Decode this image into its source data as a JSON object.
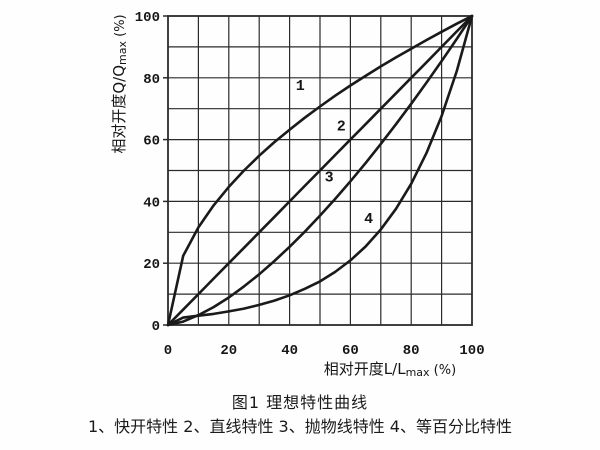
{
  "figure": {
    "caption_line1": "图1  理想特性曲线",
    "caption_line2": "1、快开特性  2、直线特性  3、抛物线特性  4、等百分比特性"
  },
  "chart_data": {
    "type": "line",
    "title": "图1 理想特性曲线",
    "xlabel": "相对开度L/Lmax (%)",
    "ylabel": "相对开度Q/Qmax (%)",
    "xlabel_parts": {
      "base": "相对开度L/L",
      "sub": "max",
      "suffix": " (%)"
    },
    "ylabel_parts": {
      "base": "相对开度Q/Q",
      "sub": "max",
      "suffix": " (%)"
    },
    "xlim": [
      0,
      100
    ],
    "ylim": [
      0,
      100
    ],
    "x_ticks": [
      0,
      20,
      40,
      60,
      80,
      100
    ],
    "y_ticks": [
      0,
      20,
      40,
      60,
      80,
      100
    ],
    "grid_step": 10,
    "grid_on": true,
    "line_color": "#1a1a1a",
    "grid_color": "#2b2b2b",
    "text_color": "#161616",
    "x": [
      0,
      5,
      10,
      15,
      20,
      25,
      30,
      35,
      40,
      45,
      50,
      55,
      60,
      65,
      70,
      75,
      80,
      85,
      90,
      95,
      100
    ],
    "series": [
      {
        "label": "1",
        "name": "快开特性",
        "label_pos": [
          43.5,
          76
        ],
        "y": [
          0,
          22.4,
          31.6,
          38.7,
          44.7,
          50,
          54.8,
          59.2,
          63.2,
          67.1,
          70.7,
          74.2,
          77.5,
          80.6,
          83.7,
          86.6,
          89.4,
          92.2,
          94.9,
          97.5,
          100
        ]
      },
      {
        "label": "2",
        "name": "直线特性",
        "label_pos": [
          57,
          63
        ],
        "y": [
          0,
          5,
          10,
          15,
          20,
          25,
          30,
          35,
          40,
          45,
          50,
          55,
          60,
          65,
          70,
          75,
          80,
          85,
          90,
          95,
          100
        ]
      },
      {
        "label": "3",
        "name": "抛物线特性",
        "label_pos": [
          53,
          46.5
        ],
        "y": [
          0,
          1.1,
          3.2,
          5.8,
          8.9,
          12.5,
          16.4,
          20.7,
          25.3,
          30.2,
          35.4,
          40.8,
          46.5,
          52.4,
          58.6,
          65,
          71.6,
          78.4,
          85.4,
          92.6,
          100
        ]
      },
      {
        "label": "4",
        "name": "等百分比特性",
        "label_pos": [
          66,
          33
        ],
        "y": [
          0,
          2.4,
          3,
          3.6,
          4.4,
          5.3,
          6.5,
          7.9,
          9.6,
          11.7,
          14.1,
          17.2,
          20.9,
          25.4,
          30.9,
          37.6,
          45.7,
          55.6,
          67.6,
          82.2,
          100
        ]
      }
    ]
  }
}
